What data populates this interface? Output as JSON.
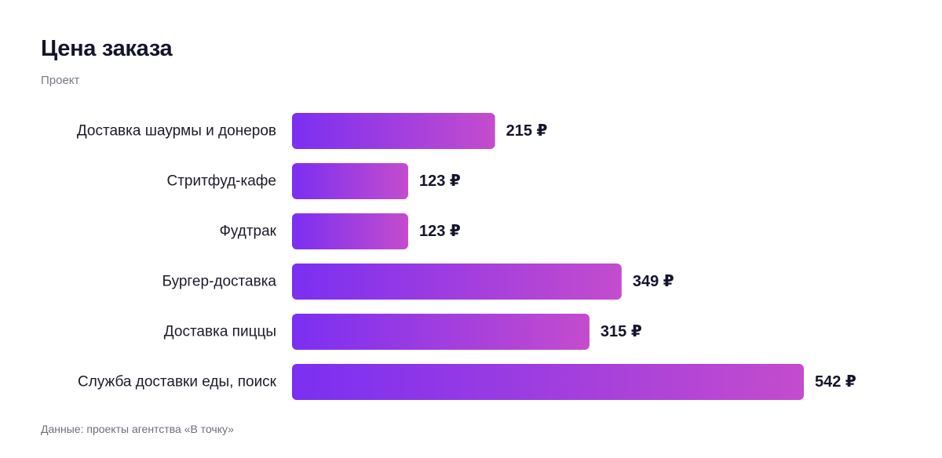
{
  "header": {
    "title": "Цена заказа",
    "subtitle": "Проект"
  },
  "footer": {
    "source": "Данные: проекты агентства «В точку»"
  },
  "colors": {
    "bar_start": "#7b2ff2",
    "bar_end": "#c44ccd"
  },
  "chart_data": {
    "type": "bar",
    "orientation": "horizontal",
    "title": "Цена заказа",
    "subtitle": "Проект",
    "value_suffix": " ₽",
    "categories": [
      "Доставка шаурмы и донеров",
      "Стритфуд-кафе",
      "Фудтрак",
      "Бургер-доставка",
      "Доставка пиццы",
      "Служба доставки еды, поиск"
    ],
    "values": [
      215,
      123,
      123,
      349,
      315,
      542
    ],
    "grid": false,
    "legend": "none"
  }
}
